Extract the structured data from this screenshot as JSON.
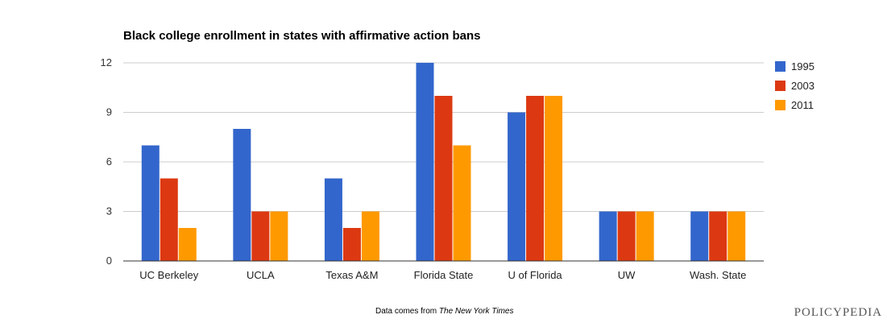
{
  "chart_data": {
    "type": "bar",
    "title": "Black college enrollment in states with affirmative action bans",
    "xlabel": "",
    "ylabel": "",
    "ylim": [
      0,
      12
    ],
    "yticks": [
      0,
      3,
      6,
      9,
      12
    ],
    "grid": true,
    "legend_position": "right",
    "categories": [
      "UC Berkeley",
      "UCLA",
      "Texas A&M",
      "Florida State",
      "U of Florida",
      "UW",
      "Wash. State"
    ],
    "series": [
      {
        "name": "1995",
        "color": "#3366cc",
        "values": [
          7,
          8,
          5,
          12,
          9,
          3,
          3
        ]
      },
      {
        "name": "2003",
        "color": "#dc3912",
        "values": [
          5,
          3,
          2,
          10,
          10,
          3,
          3
        ]
      },
      {
        "name": "2011",
        "color": "#ff9900",
        "values": [
          2,
          3,
          3,
          7,
          10,
          3,
          3
        ]
      }
    ]
  },
  "footer": {
    "source_prefix": "Data comes from",
    "source_name": "The New York Times",
    "brand": "POLICYPEDIA"
  }
}
